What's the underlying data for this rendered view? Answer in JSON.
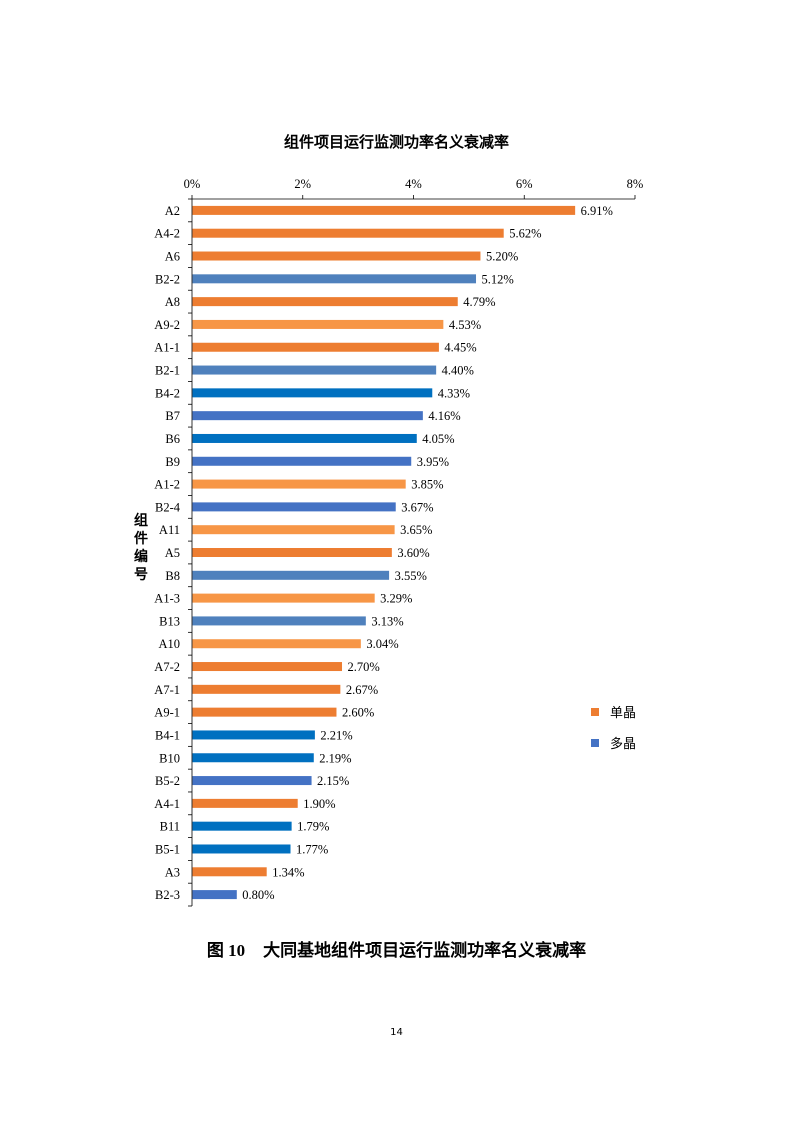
{
  "chart_data": {
    "type": "bar",
    "orientation": "horizontal",
    "title": "组件项目运行监测功率名义衰减率",
    "ylabel": "组件编号",
    "xlabel": "",
    "xlim": [
      0,
      8
    ],
    "x_ticks": [
      "0%",
      "2%",
      "4%",
      "6%",
      "8%"
    ],
    "x_axis_position": "top",
    "grid": false,
    "legend_position": "right",
    "categories": [
      "A2",
      "A4-2",
      "A6",
      "B2-2",
      "A8",
      "A9-2",
      "A1-1",
      "B2-1",
      "B4-2",
      "B7",
      "B6",
      "B9",
      "A1-2",
      "B2-4",
      "A11",
      "A5",
      "B8",
      "A1-3",
      "B13",
      "A10",
      "A7-2",
      "A7-1",
      "A9-1",
      "B4-1",
      "B10",
      "B5-2",
      "A4-1",
      "B11",
      "B5-1",
      "A3",
      "B2-3"
    ],
    "values": [
      6.91,
      5.62,
      5.2,
      5.12,
      4.79,
      4.53,
      4.45,
      4.4,
      4.33,
      4.16,
      4.05,
      3.95,
      3.85,
      3.67,
      3.65,
      3.6,
      3.55,
      3.29,
      3.13,
      3.04,
      2.7,
      2.67,
      2.6,
      2.21,
      2.19,
      2.15,
      1.9,
      1.79,
      1.77,
      1.34,
      0.8
    ],
    "value_labels": [
      "6.91%",
      "5.62%",
      "5.20%",
      "5.12%",
      "4.79%",
      "4.53%",
      "4.45%",
      "4.40%",
      "4.33%",
      "4.16%",
      "4.05%",
      "3.95%",
      "3.85%",
      "3.67%",
      "3.65%",
      "3.60%",
      "3.55%",
      "3.29%",
      "3.13%",
      "3.04%",
      "2.70%",
      "2.67%",
      "2.60%",
      "2.21%",
      "2.19%",
      "2.15%",
      "1.90%",
      "1.79%",
      "1.77%",
      "1.34%",
      "0.80%"
    ],
    "bar_colors": [
      "#ED7D31",
      "#ED7D31",
      "#ED7D31",
      "#4F81BD",
      "#ED7D31",
      "#F79646",
      "#ED7D31",
      "#4F81BD",
      "#0070C0",
      "#4472C4",
      "#0070C0",
      "#4472C4",
      "#F79646",
      "#4472C4",
      "#F79646",
      "#ED7D31",
      "#4F81BD",
      "#F79646",
      "#4F81BD",
      "#F79646",
      "#ED7D31",
      "#ED7D31",
      "#ED7D31",
      "#0070C0",
      "#0070C0",
      "#4472C4",
      "#ED7D31",
      "#0070C0",
      "#0070C0",
      "#ED7D31",
      "#4472C4"
    ],
    "legend": [
      {
        "name": "单晶",
        "color": "#ED7D31"
      },
      {
        "name": "多晶",
        "color": "#4472C4"
      }
    ]
  },
  "caption": {
    "number": "图 10",
    "text": "大同基地组件项目运行监测功率名义衰减率"
  },
  "page_number": "14"
}
